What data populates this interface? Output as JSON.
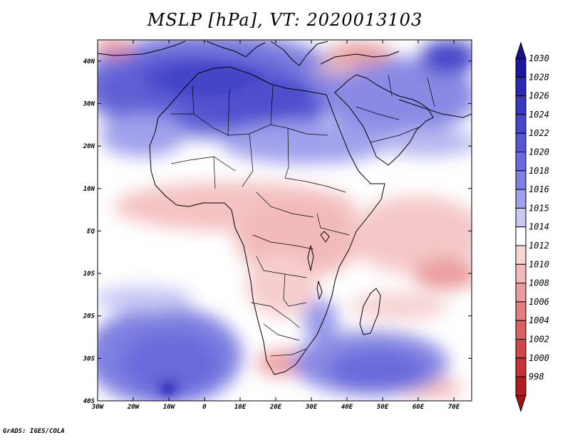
{
  "title": "MSLP [hPa], VT: 2020013103",
  "credit": "GrADS: IGES/COLA",
  "map": {
    "lon_range": [
      -30,
      75
    ],
    "lat_range": [
      -40,
      45
    ],
    "lon_ticks": [
      {
        "value": -30,
        "label": "30W"
      },
      {
        "value": -20,
        "label": "20W"
      },
      {
        "value": -10,
        "label": "10W"
      },
      {
        "value": 0,
        "label": "0"
      },
      {
        "value": 10,
        "label": "10E"
      },
      {
        "value": 20,
        "label": "20E"
      },
      {
        "value": 30,
        "label": "30E"
      },
      {
        "value": 40,
        "label": "40E"
      },
      {
        "value": 50,
        "label": "50E"
      },
      {
        "value": 60,
        "label": "60E"
      },
      {
        "value": 70,
        "label": "70E"
      }
    ],
    "lat_ticks": [
      {
        "value": 40,
        "label": "40N"
      },
      {
        "value": 30,
        "label": "30N"
      },
      {
        "value": 20,
        "label": "20N"
      },
      {
        "value": 10,
        "label": "10N"
      },
      {
        "value": 0,
        "label": "EQ"
      },
      {
        "value": -10,
        "label": "10S"
      },
      {
        "value": -20,
        "label": "20S"
      },
      {
        "value": -30,
        "label": "30S"
      },
      {
        "value": -40,
        "label": "40S"
      }
    ]
  },
  "colorbar": {
    "levels": [
      {
        "label": "1030",
        "color": "#1e14a0"
      },
      {
        "label": "1028",
        "color": "#2a28b4"
      },
      {
        "label": "1026",
        "color": "#3838c2"
      },
      {
        "label": "1024",
        "color": "#4747cc"
      },
      {
        "label": "1022",
        "color": "#5757d4"
      },
      {
        "label": "1020",
        "color": "#6a6adc"
      },
      {
        "label": "1018",
        "color": "#8080e2"
      },
      {
        "label": "1016",
        "color": "#a0a0ec"
      },
      {
        "label": "1015",
        "color": "#c8c8f4"
      },
      {
        "label": "1014",
        "color": "#ffffff"
      },
      {
        "label": "1012",
        "color": "#f8d6d6"
      },
      {
        "label": "1010",
        "color": "#f2baba"
      },
      {
        "label": "1008",
        "color": "#ea9c9c"
      },
      {
        "label": "1006",
        "color": "#e47e7e"
      },
      {
        "label": "1004",
        "color": "#dc6060"
      },
      {
        "label": "1002",
        "color": "#d44646"
      },
      {
        "label": "1000",
        "color": "#c83232"
      },
      {
        "label": "998",
        "color": "#b01e1e"
      }
    ],
    "top_arrow_color": "#1a1090",
    "bottom_arrow_color": "#a01414"
  }
}
